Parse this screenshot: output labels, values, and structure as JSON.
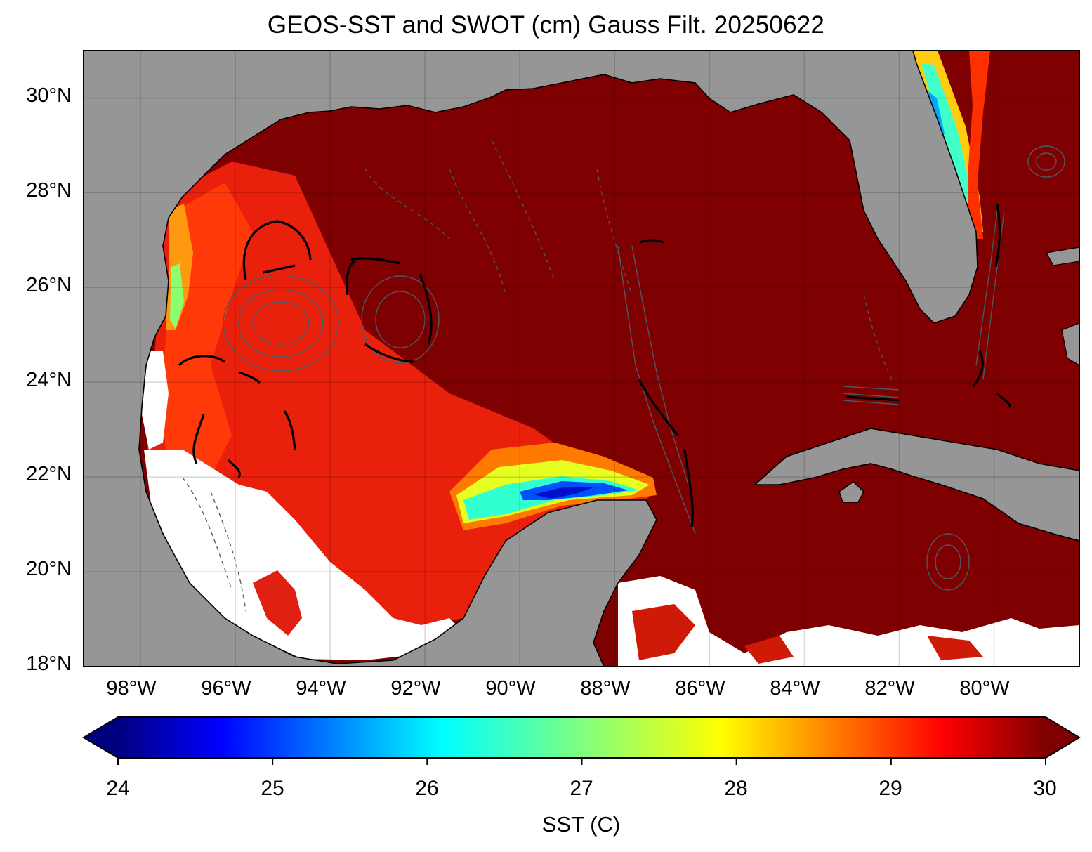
{
  "title": "GEOS-SST  and SWOT (cm) Gauss Filt. 20250622",
  "map": {
    "lon_range": [
      -99.2,
      -78.2
    ],
    "lat_range": [
      18.0,
      31.0
    ],
    "lat_ticks": [
      "18°N",
      "20°N",
      "22°N",
      "24°N",
      "26°N",
      "28°N",
      "30°N"
    ],
    "lon_ticks": [
      "98°W",
      "96°W",
      "94°W",
      "92°W",
      "90°W",
      "88°W",
      "86°W",
      "84°W",
      "82°W",
      "80°W"
    ],
    "gridlines": true,
    "land_color": "#969696",
    "no_data_color": "#ffffff",
    "coastline_color": "#000000",
    "contour_color": "#4a5a64"
  },
  "colorbar": {
    "label": "SST (C)",
    "min": 24,
    "max": 30,
    "ticks": [
      "24",
      "25",
      "26",
      "27",
      "28",
      "29",
      "30"
    ],
    "colormap": "jet",
    "extend": "both",
    "stops": [
      "#00007f",
      "#0000ff",
      "#007fff",
      "#00ffff",
      "#7fff7f",
      "#ffff00",
      "#ff7f00",
      "#ff0000",
      "#7f0000"
    ]
  }
}
